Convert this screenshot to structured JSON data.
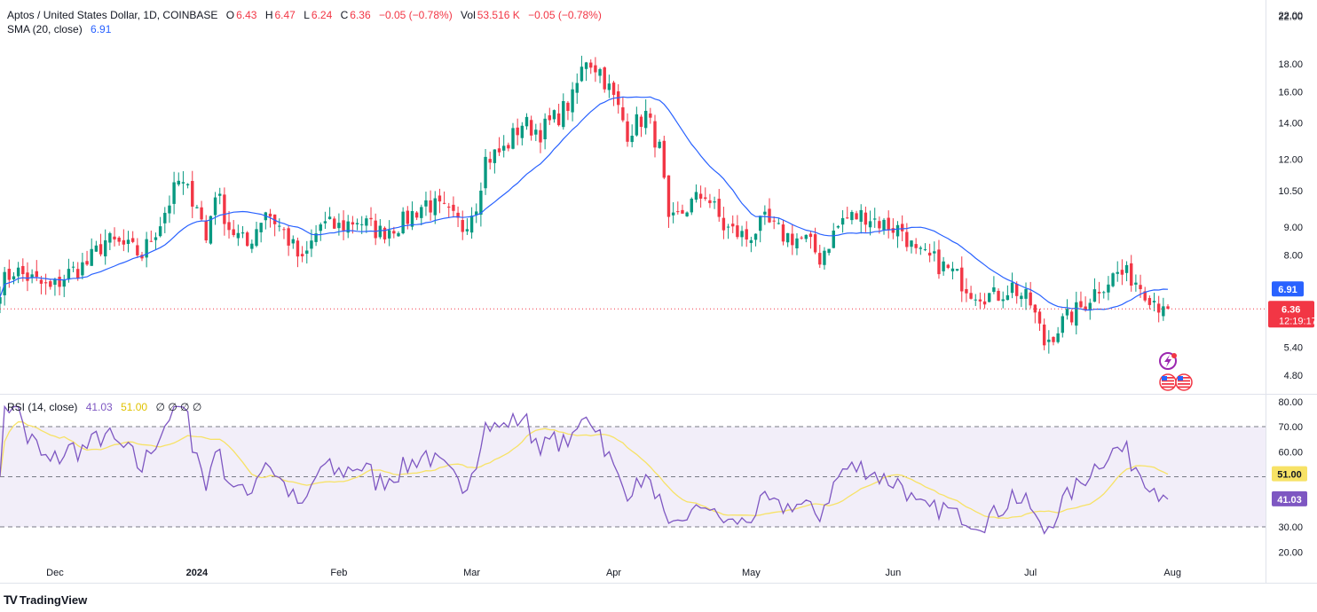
{
  "legend": {
    "symbol": "Aptos / United States Dollar, 1D, COINBASE",
    "o_label": "O",
    "o_val": "6.43",
    "h_label": "H",
    "h_val": "6.47",
    "l_label": "L",
    "l_val": "6.24",
    "c_label": "C",
    "c_val": "6.36",
    "change": "−0.05 (−0.78%)",
    "vol_label": "Vol",
    "vol_val": "53.516 K",
    "vol_change": "−0.05 (−0.78%)",
    "sma_label": "SMA (20, close)",
    "sma_val": "6.91",
    "rsi_label": "RSI (14, close)",
    "rsi_val": "41.03",
    "rsi_ma_val": "51.00",
    "rsi_extra": "∅ ∅ ∅ ∅"
  },
  "colors": {
    "up": "#089981",
    "down": "#f23645",
    "sma": "#2962ff",
    "rsi": "#7e57c2",
    "rsi_ma": "#f7e266",
    "rsi_band": "#ede7f6"
  },
  "branding": {
    "name": "TradingView"
  },
  "chart_data": [
    {
      "type": "candlestick",
      "scale": "log",
      "price_ticks": [
        "22.00",
        "18.00",
        "16.00",
        "14.00",
        "12.00",
        "10.50",
        "9.00",
        "8.00",
        "6.91",
        "6.36",
        "5.40",
        "4.80"
      ],
      "time_ticks": [
        "Dec",
        "2024",
        "Feb",
        "Mar",
        "Apr",
        "May",
        "Jun",
        "Jul",
        "Aug"
      ],
      "last_price": "6.36",
      "countdown": "12:19:17",
      "sma_last": "6.91",
      "anchors": [
        [
          "2023-11-19",
          7.0
        ],
        [
          "2023-11-22",
          7.5
        ],
        [
          "2023-11-26",
          7.2
        ],
        [
          "2023-11-30",
          6.9
        ],
        [
          "2023-12-04",
          7.4
        ],
        [
          "2023-12-08",
          7.7
        ],
        [
          "2023-12-12",
          8.5
        ],
        [
          "2023-12-16",
          8.3
        ],
        [
          "2023-12-20",
          8.0
        ],
        [
          "2023-12-24",
          9.2
        ],
        [
          "2023-12-28",
          10.9
        ],
        [
          "2024-01-01",
          10.0
        ],
        [
          "2024-01-03",
          8.5
        ],
        [
          "2024-01-05",
          10.5
        ],
        [
          "2024-01-08",
          9.0
        ],
        [
          "2024-01-12",
          8.3
        ],
        [
          "2024-01-16",
          9.7
        ],
        [
          "2024-01-20",
          8.8
        ],
        [
          "2024-01-24",
          7.7
        ],
        [
          "2024-01-28",
          9.1
        ],
        [
          "2024-02-01",
          9.0
        ],
        [
          "2024-02-05",
          9.3
        ],
        [
          "2024-02-10",
          8.8
        ],
        [
          "2024-02-15",
          9.2
        ],
        [
          "2024-02-20",
          10.0
        ],
        [
          "2024-02-24",
          9.6
        ],
        [
          "2024-02-28",
          9.0
        ],
        [
          "2024-03-02",
          10.0
        ],
        [
          "2024-03-04",
          12.0
        ],
        [
          "2024-03-08",
          12.5
        ],
        [
          "2024-03-12",
          14.0
        ],
        [
          "2024-03-16",
          13.5
        ],
        [
          "2024-03-20",
          14.5
        ],
        [
          "2024-03-23",
          15.5
        ],
        [
          "2024-03-26",
          18.5
        ],
        [
          "2024-03-29",
          17.5
        ],
        [
          "2024-04-01",
          15.5
        ],
        [
          "2024-04-04",
          13.5
        ],
        [
          "2024-04-08",
          14.5
        ],
        [
          "2024-04-11",
          12.5
        ],
        [
          "2024-04-13",
          9.0
        ],
        [
          "2024-04-17",
          9.8
        ],
        [
          "2024-04-21",
          10.4
        ],
        [
          "2024-04-25",
          9.0
        ],
        [
          "2024-04-30",
          8.6
        ],
        [
          "2024-05-04",
          9.2
        ],
        [
          "2024-05-08",
          8.7
        ],
        [
          "2024-05-13",
          8.5
        ],
        [
          "2024-05-16",
          7.9
        ],
        [
          "2024-05-21",
          9.3
        ],
        [
          "2024-05-26",
          9.5
        ],
        [
          "2024-05-30",
          9.1
        ],
        [
          "2024-06-03",
          8.9
        ],
        [
          "2024-06-06",
          8.0
        ],
        [
          "2024-06-10",
          7.8
        ],
        [
          "2024-06-14",
          7.4
        ],
        [
          "2024-06-18",
          6.9
        ],
        [
          "2024-06-23",
          6.7
        ],
        [
          "2024-06-27",
          7.0
        ],
        [
          "2024-07-01",
          6.5
        ],
        [
          "2024-07-04",
          5.5
        ],
        [
          "2024-07-08",
          6.0
        ],
        [
          "2024-07-12",
          6.4
        ],
        [
          "2024-07-16",
          7.0
        ],
        [
          "2024-07-20",
          7.4
        ],
        [
          "2024-07-23",
          7.3
        ],
        [
          "2024-07-26",
          6.9
        ],
        [
          "2024-07-29",
          6.5
        ],
        [
          "2024-07-31",
          6.36
        ]
      ]
    },
    {
      "type": "line",
      "name": "RSI (14, close)",
      "y_ticks": [
        "80.00",
        "70.00",
        "60.00",
        "51.00",
        "41.03",
        "30.00",
        "20.00"
      ],
      "bands": [
        70,
        50,
        30
      ],
      "last_rsi": 41.03,
      "last_ma": 51.0
    }
  ]
}
